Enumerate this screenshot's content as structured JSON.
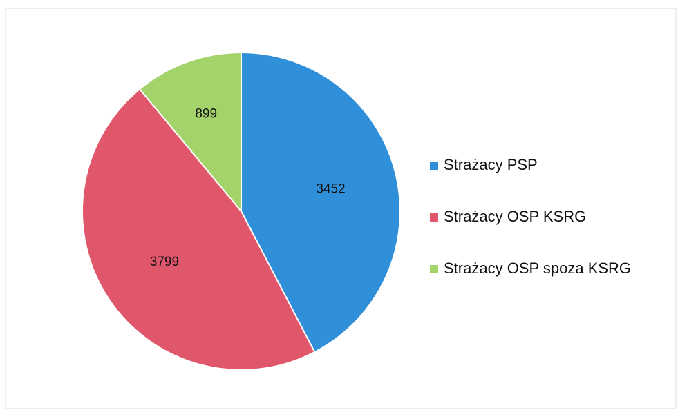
{
  "chart_data": {
    "type": "pie",
    "categories": [
      "Strażacy PSP",
      "Strażacy OSP KSRG",
      "Strażacy OSP spoza KSRG"
    ],
    "values": [
      3452,
      3799,
      899
    ],
    "colors": [
      "#2f8fd8",
      "#e0566a",
      "#a4d36b"
    ],
    "legend": "right"
  }
}
